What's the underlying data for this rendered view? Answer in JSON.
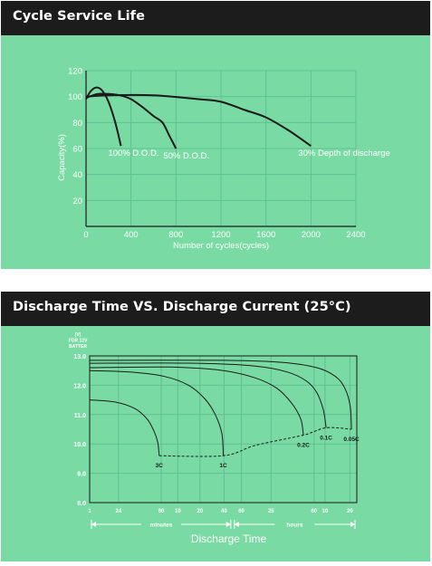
{
  "colors": {
    "header_bg": "#1c1c1c",
    "panel_bg": "#79dba3",
    "ink": "#1a1a1a",
    "grid": "#5fc090"
  },
  "chart_data": [
    {
      "type": "line",
      "title": "Cycle Service Life",
      "xlabel": "Number of cycles(cycles)",
      "ylabel": "Capacity(%)",
      "xlim": [
        0,
        2400
      ],
      "ylim": [
        0,
        120
      ],
      "xticks": [
        0,
        400,
        800,
        1200,
        1600,
        2000,
        2400
      ],
      "yticks": [
        0,
        20,
        40,
        60,
        80,
        100,
        120
      ],
      "xtick_labels": [
        "0",
        "400",
        "800",
        "1200",
        "1600",
        "2000",
        "2400"
      ],
      "ytick_labels": [
        "",
        "20",
        "40",
        "60",
        "80",
        "100",
        "120"
      ],
      "grid": true,
      "series": [
        {
          "name": "100% D.O.D.",
          "points": [
            [
              0,
              98
            ],
            [
              40,
              104
            ],
            [
              90,
              107
            ],
            [
              140,
              105
            ],
            [
              200,
              96
            ],
            [
              260,
              80
            ],
            [
              310,
              62
            ]
          ]
        },
        {
          "name": "50% D.O.D.",
          "points": [
            [
              0,
              99
            ],
            [
              100,
              102
            ],
            [
              200,
              102
            ],
            [
              300,
              101
            ],
            [
              400,
              98
            ],
            [
              500,
              92
            ],
            [
              600,
              85
            ],
            [
              680,
              80
            ],
            [
              740,
              70
            ],
            [
              800,
              60
            ]
          ]
        },
        {
          "name": "30% Depth of discharge",
          "points": [
            [
              0,
              100
            ],
            [
              200,
              101
            ],
            [
              600,
              101
            ],
            [
              1000,
              98
            ],
            [
              1200,
              96
            ],
            [
              1400,
              90
            ],
            [
              1600,
              84
            ],
            [
              1800,
              74
            ],
            [
              2000,
              62
            ]
          ]
        }
      ]
    },
    {
      "type": "line",
      "title": "Discharge Time VS. Discharge Current (25°C)",
      "xlabel": "Discharge Time",
      "ylabel": "(V) FOR 12V BATTER",
      "ylabel_lines": [
        "(V)",
        "FOR 12V",
        "BATTER"
      ],
      "ylim": [
        8.0,
        13.0
      ],
      "yticks": [
        8.0,
        9.0,
        10.0,
        11.0,
        12.0,
        13.0
      ],
      "ytick_labels": [
        "8.0",
        "9.0",
        "10.0",
        "11.0",
        "12.0",
        "13.0"
      ],
      "x_ticks": [
        {
          "label": "1",
          "pos": 0
        },
        {
          "label": "24",
          "pos": 0.108
        },
        {
          "label": "60",
          "pos": 0.268
        },
        {
          "label": "10",
          "pos": 0.33
        },
        {
          "label": "20",
          "pos": 0.413
        },
        {
          "label": "40",
          "pos": 0.503
        },
        {
          "label": "60",
          "pos": 0.568
        },
        {
          "label": "25",
          "pos": 0.679
        },
        {
          "label": "60",
          "pos": 0.84
        },
        {
          "label": "10",
          "pos": 0.881
        },
        {
          "label": "20",
          "pos": 0.974
        }
      ],
      "x_unit_labels": [
        {
          "label": "minutes",
          "from": 0,
          "to": 0.535
        },
        {
          "label": "hours",
          "from": 0.535,
          "to": 1.0
        }
      ],
      "grid": true,
      "series": [
        {
          "name": "3C",
          "points": [
            [
              0,
              11.5
            ],
            [
              0.1,
              11.42
            ],
            [
              0.17,
              11.2
            ],
            [
              0.215,
              10.85
            ],
            [
              0.24,
              10.45
            ],
            [
              0.255,
              10.05
            ],
            [
              0.26,
              9.6
            ]
          ]
        },
        {
          "name": "1C",
          "points": [
            [
              0,
              12.5
            ],
            [
              0.15,
              12.45
            ],
            [
              0.28,
              12.3
            ],
            [
              0.37,
              12.0
            ],
            [
              0.43,
              11.55
            ],
            [
              0.47,
              11.0
            ],
            [
              0.495,
              10.35
            ],
            [
              0.5,
              9.6
            ]
          ]
        },
        {
          "name": "0.2C",
          "points": [
            [
              0,
              12.6
            ],
            [
              0.3,
              12.62
            ],
            [
              0.5,
              12.5
            ],
            [
              0.62,
              12.25
            ],
            [
              0.7,
              11.9
            ],
            [
              0.755,
              11.4
            ],
            [
              0.79,
              10.85
            ],
            [
              0.8,
              10.3
            ]
          ]
        },
        {
          "name": "0.1C",
          "points": [
            [
              0,
              12.75
            ],
            [
              0.4,
              12.75
            ],
            [
              0.62,
              12.65
            ],
            [
              0.74,
              12.45
            ],
            [
              0.81,
              12.15
            ],
            [
              0.85,
              11.75
            ],
            [
              0.875,
              11.15
            ],
            [
              0.885,
              10.55
            ]
          ]
        },
        {
          "name": "0.05C",
          "points": [
            [
              0,
              12.85
            ],
            [
              0.5,
              12.85
            ],
            [
              0.72,
              12.78
            ],
            [
              0.85,
              12.6
            ],
            [
              0.92,
              12.3
            ],
            [
              0.955,
              11.9
            ],
            [
              0.975,
              11.3
            ],
            [
              0.98,
              10.5
            ]
          ]
        }
      ],
      "cutoff_line": [
        [
          0.26,
          9.6
        ],
        [
          0.5,
          9.6
        ],
        [
          0.62,
          9.95
        ],
        [
          0.8,
          10.3
        ],
        [
          0.885,
          10.55
        ],
        [
          0.98,
          10.5
        ]
      ]
    }
  ]
}
